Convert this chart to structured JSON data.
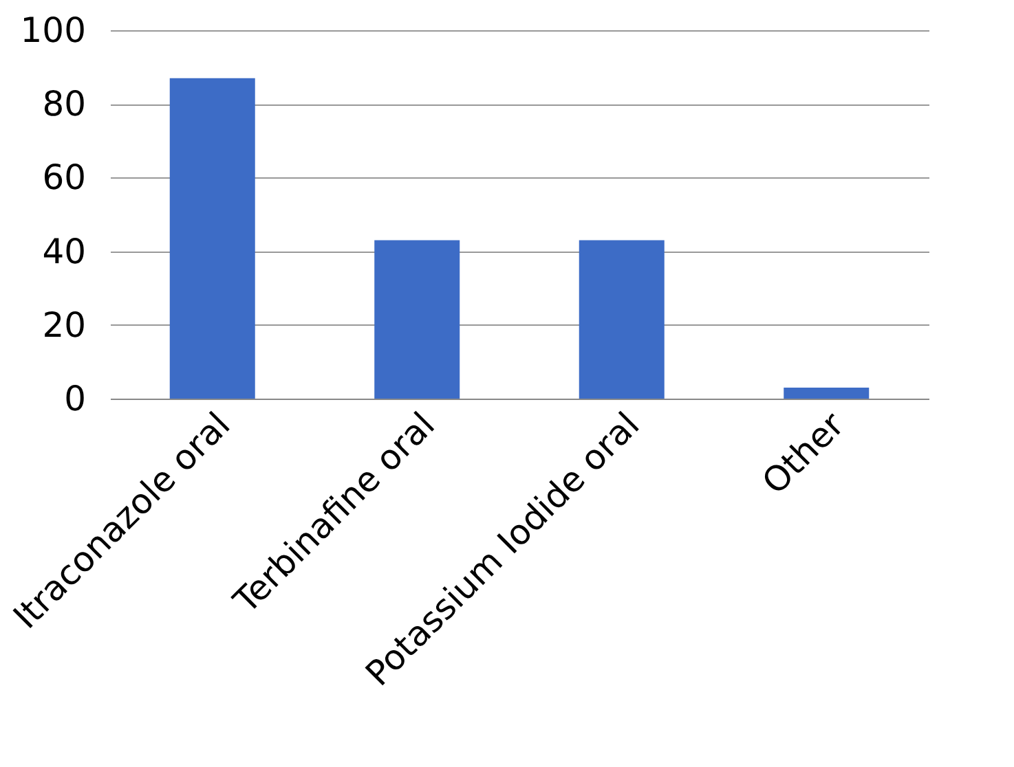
{
  "chart_data": {
    "type": "bar",
    "categories": [
      "Itraconazole oral",
      "Terbinafine oral",
      "Potassium Iodide oral",
      "Other"
    ],
    "values": [
      87,
      43,
      43,
      3
    ],
    "color": "#3d6cc6",
    "ylim": [
      0,
      100
    ],
    "yticks": [
      0,
      20,
      40,
      60,
      80,
      100
    ],
    "grid": "y"
  }
}
